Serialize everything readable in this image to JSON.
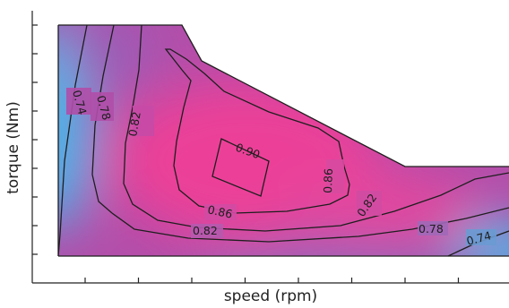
{
  "chart_data": {
    "type": "heatmap",
    "title": "",
    "xlabel": "speed (rpm)",
    "ylabel": "torque (Nm)",
    "x_tick_count": 9,
    "y_tick_count": 9,
    "tick_labels_shown": false,
    "colormap": {
      "low": "#2fc4f2",
      "mid": "#8a63b8",
      "high": "#e63e9c"
    },
    "contour_levels": [
      0.74,
      0.78,
      0.82,
      0.86,
      0.9
    ],
    "contour_labels": [
      {
        "text": "0.74",
        "level": 0.74
      },
      {
        "text": "0.78",
        "level": 0.78
      },
      {
        "text": "0.82",
        "level": 0.82
      },
      {
        "text": "0.86",
        "level": 0.86
      },
      {
        "text": "0.90",
        "level": 0.9
      },
      {
        "text": "0.86",
        "level": 0.86
      },
      {
        "text": "0.82",
        "level": 0.82
      },
      {
        "text": "0.86",
        "level": 0.86
      },
      {
        "text": "0.82",
        "level": 0.82
      },
      {
        "text": "0.78",
        "level": 0.78
      },
      {
        "text": "0.74",
        "level": 0.74
      }
    ]
  }
}
